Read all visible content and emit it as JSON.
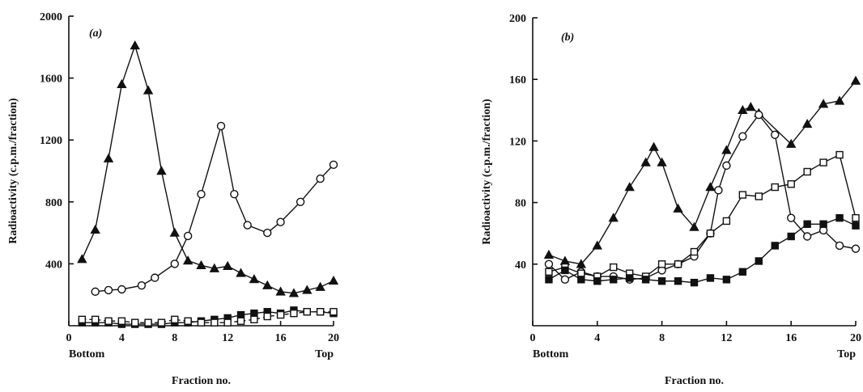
{
  "chart_data": [
    {
      "type": "line",
      "annotation": "(a)",
      "x_label": "Fraction no.",
      "y_label": "Radioactivity (c.p.m./fraction)",
      "left_label": "Bottom",
      "right_label": "Top",
      "xlim": [
        0,
        20
      ],
      "xticks": [
        0,
        4,
        8,
        12,
        16,
        20
      ],
      "ylim": [
        0,
        2000
      ],
      "yticks": [
        400,
        800,
        1200,
        1600,
        2000
      ],
      "series": [
        {
          "marker": "triangle-filled",
          "color": "#111111",
          "dash": false,
          "x": [
            1,
            2,
            3,
            4,
            5,
            6,
            7,
            8,
            9,
            10,
            11,
            12,
            13,
            14,
            15,
            16,
            17,
            18,
            19,
            20
          ],
          "values": [
            430,
            620,
            1080,
            1560,
            1810,
            1520,
            1000,
            600,
            420,
            390,
            370,
            385,
            340,
            300,
            260,
            220,
            210,
            230,
            250,
            290
          ]
        },
        {
          "marker": "circle-open",
          "color": "#111111",
          "dash": false,
          "x": [
            2,
            3,
            4,
            5.5,
            6.5,
            8,
            9,
            10,
            11.5,
            12.5,
            13.5,
            15,
            16,
            17.5,
            19,
            20
          ],
          "values": [
            220,
            230,
            235,
            260,
            310,
            400,
            580,
            850,
            1290,
            850,
            650,
            600,
            670,
            800,
            950,
            1040
          ]
        },
        {
          "marker": "square-filled",
          "color": "#111111",
          "dash": false,
          "x": [
            1,
            2,
            3,
            4,
            5,
            6,
            7,
            8,
            9,
            10,
            11,
            12,
            13,
            14,
            15,
            16,
            17,
            18,
            19,
            20
          ],
          "values": [
            20,
            20,
            20,
            10,
            10,
            10,
            10,
            20,
            20,
            30,
            40,
            50,
            70,
            80,
            90,
            80,
            100,
            90,
            90,
            80
          ]
        },
        {
          "marker": "square-open",
          "color": "#111111",
          "dash": true,
          "x": [
            1,
            2,
            3,
            4,
            5,
            6,
            7,
            8,
            9,
            10,
            11,
            12,
            13,
            14,
            15,
            16,
            17,
            18,
            19,
            20
          ],
          "values": [
            40,
            40,
            30,
            30,
            20,
            20,
            20,
            40,
            30,
            20,
            20,
            20,
            30,
            40,
            60,
            70,
            80,
            90,
            90,
            90
          ]
        }
      ]
    },
    {
      "type": "line",
      "annotation": "(b)",
      "x_label": "Fraction no.",
      "y_label": "Radioactivity (c.p.m./fraction)",
      "left_label": "Bottom",
      "right_label": "Top",
      "xlim": [
        0,
        20
      ],
      "xticks": [
        0,
        4,
        8,
        12,
        16,
        20
      ],
      "ylim": [
        0,
        200
      ],
      "yticks": [
        40,
        80,
        120,
        160,
        200
      ],
      "series": [
        {
          "marker": "triangle-filled",
          "color": "#111111",
          "dash": false,
          "x": [
            1,
            2,
            3,
            4,
            5,
            6,
            7,
            7.5,
            8,
            9,
            10,
            11,
            12,
            13,
            13.5,
            14,
            16,
            17,
            18,
            19,
            20
          ],
          "values": [
            46,
            42,
            40,
            52,
            70,
            90,
            106,
            116,
            106,
            76,
            64,
            90,
            114,
            140,
            142,
            138,
            118,
            131,
            144,
            146,
            159
          ]
        },
        {
          "marker": "circle-open",
          "color": "#111111",
          "dash": false,
          "x": [
            1,
            2,
            3,
            4,
            5,
            6,
            7,
            8,
            9,
            10,
            11,
            11.5,
            12,
            13,
            14,
            15,
            16,
            17,
            18,
            19,
            20
          ],
          "values": [
            40,
            30,
            35,
            32,
            32,
            30,
            31,
            36,
            40,
            45,
            60,
            88,
            104,
            123,
            137,
            124,
            70,
            58,
            62,
            52,
            50
          ]
        },
        {
          "marker": "square-open",
          "color": "#111111",
          "dash": false,
          "x": [
            1,
            2,
            3,
            4,
            5,
            6,
            7,
            8,
            9,
            10,
            11,
            12,
            13,
            14,
            15,
            16,
            17,
            18,
            19,
            20
          ],
          "values": [
            35,
            38,
            34,
            32,
            38,
            34,
            32,
            40,
            40,
            48,
            60,
            68,
            85,
            84,
            90,
            92,
            100,
            106,
            111,
            70
          ]
        },
        {
          "marker": "square-filled",
          "color": "#111111",
          "dash": false,
          "x": [
            1,
            2,
            3,
            4,
            5,
            6,
            7,
            8,
            9,
            10,
            11,
            12,
            13,
            14,
            15,
            16,
            17,
            18,
            19,
            20
          ],
          "values": [
            30,
            36,
            30,
            29,
            30,
            31,
            30,
            29,
            29,
            28,
            31,
            30,
            35,
            42,
            52,
            58,
            66,
            66,
            70,
            65
          ]
        }
      ]
    }
  ]
}
